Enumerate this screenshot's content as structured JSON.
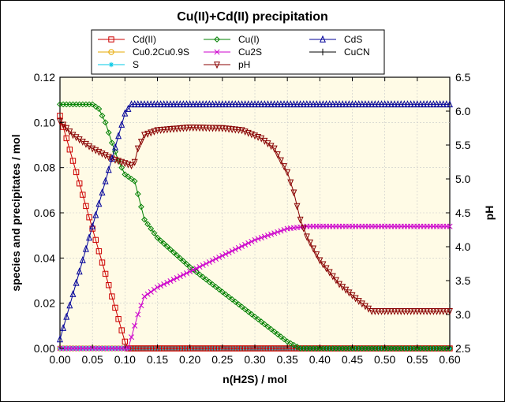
{
  "chart_data": {
    "type": "line",
    "title": "Cu(II)+Cd(II) precipitation",
    "xlabel": "n(H2S) / mol",
    "ylabel": "species and precipitates / mol",
    "y2label": "pH",
    "xlim": [
      0,
      0.6
    ],
    "ylim": [
      0,
      0.12
    ],
    "y2lim": [
      2.5,
      6.5
    ],
    "xticks": [
      "0.00",
      "0.05",
      "0.10",
      "0.15",
      "0.20",
      "0.25",
      "0.30",
      "0.35",
      "0.40",
      "0.45",
      "0.50",
      "0.55",
      "0.60"
    ],
    "yticks": [
      "0.00",
      "0.02",
      "0.04",
      "0.06",
      "0.08",
      "0.10",
      "0.12"
    ],
    "y2ticks": [
      "2.5",
      "3.0",
      "3.5",
      "4.0",
      "4.5",
      "5.0",
      "5.5",
      "6.0",
      "6.5"
    ],
    "grid": true,
    "legend_position": "top",
    "series": [
      {
        "name": "Cd(II)",
        "color": "#cc0000",
        "marker": "square",
        "axis": "left",
        "x": [
          0,
          0.02,
          0.04,
          0.06,
          0.08,
          0.1,
          0.105,
          0.12,
          0.6
        ],
        "y": [
          0.103,
          0.083,
          0.063,
          0.043,
          0.023,
          0.003,
          0.0,
          0.0,
          0.0
        ]
      },
      {
        "name": "Cu0.2Cu0.9S",
        "color": "#e6a800",
        "marker": "circle",
        "axis": "left",
        "x": [
          0,
          0.1,
          0.2,
          0.3,
          0.4,
          0.5,
          0.6
        ],
        "y": [
          0.0,
          0.0,
          0.0,
          0.0,
          0.0,
          0.0,
          0.0
        ]
      },
      {
        "name": "S",
        "color": "#00c8e6",
        "marker": "star",
        "axis": "left",
        "x": [
          0,
          0.3,
          0.6
        ],
        "y": [
          0.0,
          0.0,
          0.0
        ]
      },
      {
        "name": "Cu(I)",
        "color": "#008000",
        "marker": "diamond",
        "axis": "left",
        "x": [
          0,
          0.05,
          0.06,
          0.07,
          0.08,
          0.09,
          0.1,
          0.115,
          0.13,
          0.15,
          0.2,
          0.25,
          0.3,
          0.35,
          0.37,
          0.6
        ],
        "y": [
          0.108,
          0.108,
          0.106,
          0.1,
          0.091,
          0.083,
          0.077,
          0.074,
          0.057,
          0.049,
          0.036,
          0.025,
          0.014,
          0.003,
          0.0,
          0.0
        ]
      },
      {
        "name": "Cu2S",
        "color": "#cc00cc",
        "marker": "x",
        "axis": "left",
        "x": [
          0,
          0.105,
          0.11,
          0.12,
          0.13,
          0.15,
          0.2,
          0.25,
          0.3,
          0.35,
          0.38,
          0.4,
          0.6
        ],
        "y": [
          0.0,
          0.0,
          0.005,
          0.015,
          0.023,
          0.027,
          0.034,
          0.041,
          0.048,
          0.053,
          0.054,
          0.054,
          0.054
        ]
      },
      {
        "name": "CdS",
        "color": "#000099",
        "marker": "triangle",
        "axis": "left",
        "x": [
          0,
          0.02,
          0.04,
          0.06,
          0.08,
          0.1,
          0.11,
          0.6
        ],
        "y": [
          0.004,
          0.024,
          0.044,
          0.064,
          0.084,
          0.104,
          0.108,
          0.108
        ]
      },
      {
        "name": "pH",
        "color": "#880000",
        "marker": "triangle-down",
        "axis": "right",
        "x": [
          0,
          0.02,
          0.05,
          0.08,
          0.11,
          0.115,
          0.12,
          0.13,
          0.15,
          0.2,
          0.25,
          0.28,
          0.31,
          0.33,
          0.35,
          0.36,
          0.37,
          0.38,
          0.4,
          0.43,
          0.46,
          0.48,
          0.6
        ],
        "y": [
          5.85,
          5.65,
          5.45,
          5.3,
          5.2,
          5.25,
          5.45,
          5.65,
          5.72,
          5.76,
          5.75,
          5.72,
          5.6,
          5.45,
          5.1,
          4.8,
          4.4,
          4.15,
          3.8,
          3.45,
          3.2,
          3.05,
          3.05
        ]
      },
      {
        "name": "CuCN",
        "color": "#000000",
        "marker": "plus",
        "axis": "left",
        "x": [],
        "y": []
      }
    ]
  }
}
